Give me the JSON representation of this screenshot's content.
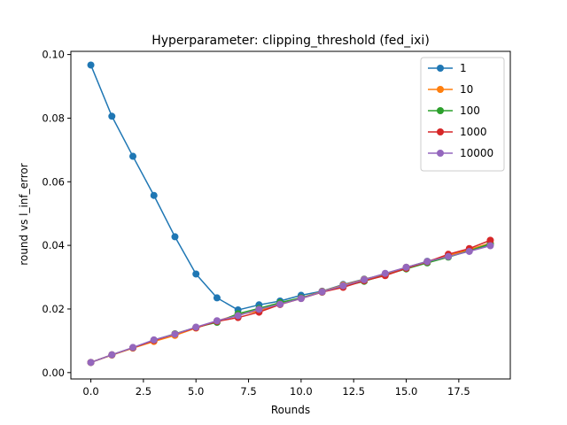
{
  "chart_data": {
    "type": "line",
    "title": "Hyperparameter: clipping_threshold (fed_ixi)",
    "xlabel": "Rounds",
    "ylabel": "round vs l_inf_error",
    "xlim": [
      -0.95,
      19.95
    ],
    "ylim": [
      -0.002,
      0.101
    ],
    "xticks": [
      0.0,
      2.5,
      5.0,
      7.5,
      10.0,
      12.5,
      15.0,
      17.5
    ],
    "xtick_labels": [
      "0.0",
      "2.5",
      "5.0",
      "7.5",
      "10.0",
      "12.5",
      "15.0",
      "17.5"
    ],
    "yticks": [
      0.0,
      0.02,
      0.04,
      0.06,
      0.08,
      0.1
    ],
    "ytick_labels": [
      "0.00",
      "0.02",
      "0.04",
      "0.06",
      "0.08",
      "0.10"
    ],
    "grid": false,
    "legend_position": "top-right",
    "x": [
      0,
      1,
      2,
      3,
      4,
      5,
      6,
      7,
      8,
      9,
      10,
      11,
      12,
      13,
      14,
      15,
      16,
      17,
      18,
      19
    ],
    "series": [
      {
        "name": "1",
        "color": "#1f77b4",
        "values": [
          0.0967,
          0.0806,
          0.068,
          0.0557,
          0.0427,
          0.031,
          0.0235,
          0.0197,
          0.0213,
          0.0225,
          0.0243,
          0.0256,
          0.0277,
          0.0294,
          0.0309,
          0.0331,
          0.035,
          0.0367,
          0.0383,
          0.0403
        ]
      },
      {
        "name": "10",
        "color": "#ff7f0e",
        "values": [
          0.0032,
          0.0055,
          0.0077,
          0.0098,
          0.0117,
          0.014,
          0.0162,
          0.0183,
          0.0193,
          0.0218,
          0.0235,
          0.0255,
          0.0275,
          0.0293,
          0.031,
          0.0331,
          0.0349,
          0.0368,
          0.0387,
          0.0407
        ]
      },
      {
        "name": "100",
        "color": "#2ca02c",
        "values": [
          0.0032,
          0.0056,
          0.0078,
          0.0102,
          0.0122,
          0.0142,
          0.0158,
          0.0185,
          0.0202,
          0.022,
          0.0235,
          0.0253,
          0.0271,
          0.0287,
          0.0307,
          0.0326,
          0.0345,
          0.0363,
          0.0383,
          0.0405
        ]
      },
      {
        "name": "1000",
        "color": "#d62728",
        "values": [
          0.0032,
          0.0056,
          0.0078,
          0.0101,
          0.0121,
          0.0141,
          0.0161,
          0.0173,
          0.019,
          0.0214,
          0.0233,
          0.0253,
          0.0268,
          0.0289,
          0.0305,
          0.0328,
          0.0348,
          0.0372,
          0.039,
          0.0416
        ]
      },
      {
        "name": "10000",
        "color": "#9467bd",
        "values": [
          0.0032,
          0.0056,
          0.0079,
          0.0103,
          0.0121,
          0.0143,
          0.0163,
          0.0179,
          0.0199,
          0.0215,
          0.0233,
          0.0254,
          0.0273,
          0.0292,
          0.0312,
          0.0331,
          0.0349,
          0.0365,
          0.0381,
          0.0399
        ]
      }
    ]
  }
}
